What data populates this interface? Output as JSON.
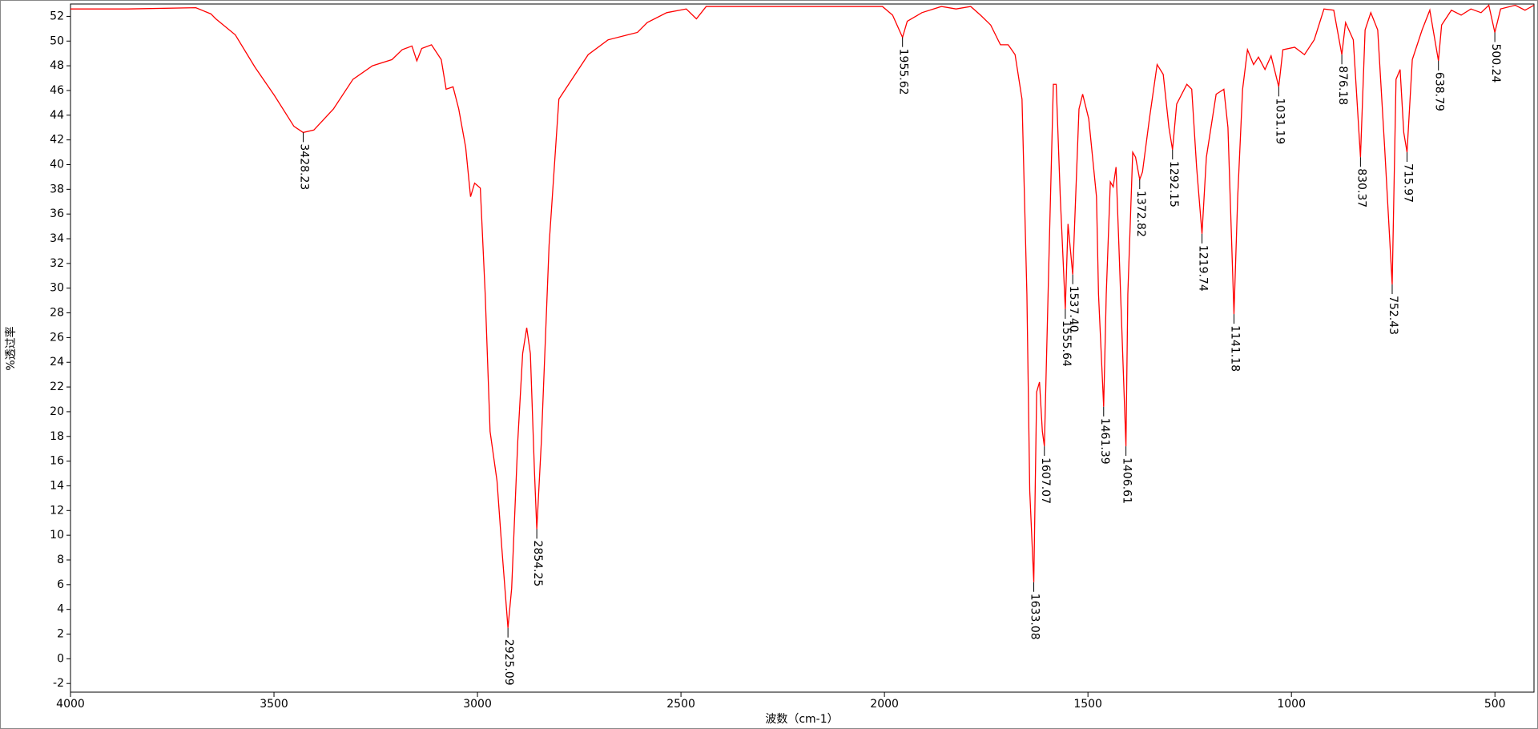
{
  "chart_data": {
    "type": "line",
    "x_label": "波数（cm-1）",
    "y_label": "%透过率",
    "color": "#ff0000",
    "xlim": [
      4000,
      404
    ],
    "ylim": [
      -2.7,
      53
    ],
    "xticks": [
      4000,
      3500,
      3000,
      2500,
      2000,
      1500,
      1000,
      500
    ],
    "yticks": [
      -2,
      0,
      2,
      4,
      6,
      8,
      10,
      12,
      14,
      16,
      18,
      20,
      22,
      24,
      26,
      28,
      30,
      32,
      34,
      36,
      38,
      40,
      42,
      44,
      46,
      48,
      50,
      52
    ],
    "x": [
      4000,
      3860,
      3692,
      3655,
      3643,
      3595,
      3547,
      3499,
      3451,
      3428.23,
      3402,
      3354,
      3306,
      3258,
      3210,
      3185,
      3161,
      3149,
      3137,
      3113,
      3089,
      3077,
      3060,
      3046,
      3029,
      3017,
      3007,
      2993,
      2981,
      2969,
      2952,
      2940,
      2925.09,
      2916,
      2901,
      2889,
      2879,
      2870,
      2860,
      2854.25,
      2843,
      2824,
      2800,
      2776,
      2752,
      2728,
      2679,
      2631,
      2607,
      2583,
      2535,
      2487,
      2462,
      2438,
      2246,
      2005,
      1980,
      1955.62,
      1944,
      1908,
      1860,
      1824,
      1788,
      1764,
      1739,
      1715,
      1696,
      1679,
      1662,
      1650,
      1643,
      1633.08,
      1626,
      1619,
      1612,
      1607.07,
      1595,
      1585,
      1578,
      1568,
      1555.64,
      1549,
      1537.4,
      1522,
      1513,
      1498,
      1479,
      1474,
      1461.39,
      1455,
      1445,
      1438,
      1431,
      1424,
      1406.61,
      1402,
      1390,
      1383,
      1372.82,
      1366,
      1349,
      1330,
      1315,
      1301,
      1292.15,
      1282,
      1257,
      1245,
      1233,
      1219.74,
      1209,
      1185,
      1166,
      1156,
      1141.18,
      1132,
      1120,
      1108,
      1093,
      1081,
      1065,
      1050,
      1031.19,
      1021,
      992,
      968,
      944,
      920,
      896,
      876.18,
      867,
      848,
      830.37,
      819,
      805,
      788,
      771,
      752.43,
      743,
      733,
      724,
      715.97,
      703,
      679,
      660,
      638.79,
      631,
      607,
      583,
      559,
      534,
      515,
      500.24,
      486,
      450,
      426,
      404
    ],
    "values": [
      52.6,
      52.6,
      52.7,
      52.2,
      51.8,
      50.5,
      47.9,
      45.6,
      43.1,
      42.6,
      42.8,
      44.5,
      46.9,
      48.0,
      48.5,
      49.3,
      49.6,
      48.4,
      49.4,
      49.7,
      48.5,
      46.1,
      46.3,
      44.5,
      41.4,
      37.4,
      38.5,
      38.1,
      29.5,
      18.4,
      14.4,
      8.9,
      2.5,
      5.7,
      17.6,
      24.7,
      26.8,
      24.7,
      15.2,
      10.5,
      17.6,
      33.5,
      45.3,
      46.5,
      47.7,
      48.9,
      50.1,
      50.5,
      50.7,
      51.5,
      52.3,
      52.6,
      51.8,
      52.8,
      52.8,
      52.8,
      52.1,
      50.3,
      51.6,
      52.3,
      52.8,
      52.6,
      52.8,
      52.1,
      51.3,
      49.7,
      49.7,
      48.9,
      45.3,
      29.5,
      13.6,
      6.2,
      21.6,
      22.4,
      18.4,
      17.2,
      33.5,
      46.5,
      46.5,
      37.4,
      28.3,
      35.2,
      31.1,
      44.5,
      45.7,
      43.7,
      37.4,
      29.5,
      20.4,
      29.5,
      38.6,
      38.2,
      39.8,
      33.5,
      17.2,
      29.5,
      41.0,
      40.6,
      38.8,
      39.4,
      43.7,
      48.1,
      47.3,
      43.0,
      41.2,
      44.9,
      46.5,
      46.1,
      39.8,
      34.4,
      40.6,
      45.7,
      46.1,
      43.0,
      27.9,
      37.4,
      46.1,
      49.3,
      48.1,
      48.7,
      47.7,
      48.8,
      46.3,
      49.3,
      49.5,
      48.9,
      50.1,
      52.6,
      52.5,
      48.9,
      51.5,
      50.1,
      40.6,
      50.9,
      52.3,
      50.9,
      41.4,
      30.3,
      46.9,
      47.7,
      42.6,
      41.0,
      48.5,
      50.9,
      52.5,
      48.4,
      51.3,
      52.5,
      52.1,
      52.6,
      52.3,
      52.9,
      50.7,
      52.6,
      52.9,
      52.5,
      52.9
    ],
    "annotations": [
      {
        "x": 3428.23,
        "y": 42.6,
        "label": "3428.23"
      },
      {
        "x": 2925.09,
        "y": 2.5,
        "label": "2925.09"
      },
      {
        "x": 2854.25,
        "y": 10.5,
        "label": "2854.25"
      },
      {
        "x": 1955.62,
        "y": 50.3,
        "label": "1955.62"
      },
      {
        "x": 1633.08,
        "y": 6.2,
        "label": "1633.08"
      },
      {
        "x": 1607.07,
        "y": 17.2,
        "label": "1607.07"
      },
      {
        "x": 1555.64,
        "y": 28.3,
        "label": "1555.64"
      },
      {
        "x": 1537.4,
        "y": 31.1,
        "label": "1537.40"
      },
      {
        "x": 1461.39,
        "y": 20.4,
        "label": "1461.39"
      },
      {
        "x": 1406.61,
        "y": 17.2,
        "label": "1406.61"
      },
      {
        "x": 1372.82,
        "y": 38.8,
        "label": "1372.82"
      },
      {
        "x": 1292.15,
        "y": 41.2,
        "label": "1292.15"
      },
      {
        "x": 1219.74,
        "y": 34.4,
        "label": "1219.74"
      },
      {
        "x": 1141.18,
        "y": 27.9,
        "label": "1141.18"
      },
      {
        "x": 1031.19,
        "y": 46.3,
        "label": "1031.19"
      },
      {
        "x": 876.18,
        "y": 48.9,
        "label": "876.18"
      },
      {
        "x": 830.37,
        "y": 40.6,
        "label": "830.37"
      },
      {
        "x": 752.43,
        "y": 30.3,
        "label": "752.43"
      },
      {
        "x": 715.97,
        "y": 41.0,
        "label": "715.97"
      },
      {
        "x": 638.79,
        "y": 48.4,
        "label": "638.79"
      },
      {
        "x": 500.24,
        "y": 50.7,
        "label": "500.24"
      }
    ]
  }
}
